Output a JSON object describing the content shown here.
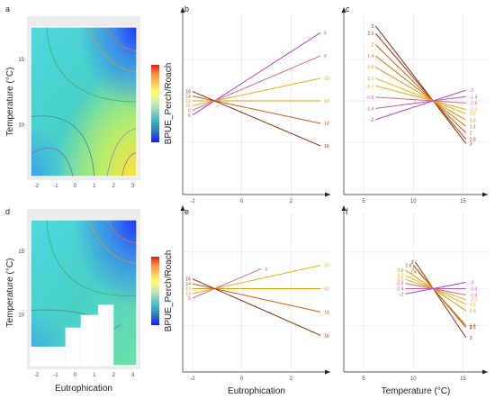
{
  "chart_data": {
    "colorbar": {
      "label": "BPUE_Perch/Roach",
      "colors": [
        "#e31a1c",
        "#fd8d3c",
        "#fecc5c",
        "#ffff66",
        "#c7e9b4",
        "#7fcdbb",
        "#41b6c4",
        "#2c7fb8",
        "#253494",
        "#1a1aff"
      ]
    },
    "heatmaps": [
      {
        "panel": "a",
        "xlabel": "",
        "ylabel": "Temperature (°C)",
        "xticks": [
          -2,
          -1,
          0,
          1,
          2,
          3
        ],
        "yticks": [
          10,
          15
        ],
        "xlim": [
          -2.3,
          3.2
        ],
        "ylim": [
          6,
          17.5
        ],
        "masked": []
      },
      {
        "panel": "d",
        "xlabel": "Eutrophication",
        "ylabel": "Temperature (°C)",
        "xticks": [
          -2,
          -1,
          0,
          1,
          2,
          3
        ],
        "yticks": [
          10,
          15
        ],
        "xlim": [
          -2.3,
          3.2
        ],
        "ylim": [
          6,
          17.5
        ],
        "masked": [
          [
            -2.3,
            -0.5,
            6,
            7.5
          ],
          [
            -0.5,
            0.3,
            6,
            9
          ],
          [
            0.3,
            1.2,
            6,
            10
          ],
          [
            1.2,
            2.0,
            6,
            10.8
          ]
        ]
      }
    ],
    "line_panels": [
      {
        "panel": "b",
        "type": "line",
        "xlabel": "",
        "xticks": [
          -2,
          0,
          2
        ],
        "xlim": [
          -2.4,
          3.6
        ],
        "ylim": [
          -1,
          1
        ],
        "pivot": [
          -1.1,
          0
        ],
        "x_start": -2,
        "x_end": 3.2,
        "left_labels": [
          "16",
          "14",
          "12",
          "10",
          "8",
          "6"
        ],
        "right_labels": [
          "6",
          "8",
          "10",
          "12",
          "14",
          "16"
        ],
        "series": [
          {
            "name": "6",
            "color": "#b040c8",
            "y_right": 0.91
          },
          {
            "name": "8",
            "color": "#d06a8a",
            "y_right": 0.6
          },
          {
            "name": "10",
            "color": "#e0b020",
            "y_right": 0.3
          },
          {
            "name": "12",
            "color": "#d89a18",
            "y_right": 0.0
          },
          {
            "name": "14",
            "color": "#c46014",
            "y_right": -0.3
          },
          {
            "name": "16",
            "color": "#8a2a10",
            "y_right": -0.6
          }
        ]
      },
      {
        "panel": "c",
        "type": "line",
        "xlabel": "",
        "xticks": [
          5,
          10,
          15
        ],
        "xlim": [
          3,
          17.5
        ],
        "ylim": [
          -1,
          1
        ],
        "pivot": [
          12,
          0
        ],
        "x_start": 6.2,
        "x_end": 15.3,
        "left_labels": [
          "3",
          "2.6",
          "2",
          "1.4",
          "0.8",
          "0.2",
          "-0.2",
          "-0.8",
          "-1.4",
          "-2"
        ],
        "right_labels": [
          "-2",
          "-1.4",
          "-0.8",
          "-0.2",
          "0.2",
          "0.8",
          "1.4",
          "2",
          "2.6",
          "3"
        ],
        "series": [
          {
            "name": "3",
            "color": "#8a2a10",
            "y_left": 1.0
          },
          {
            "name": "2.6",
            "color": "#a83c14",
            "y_left": 0.9
          },
          {
            "name": "2",
            "color": "#c46014",
            "y_left": 0.75
          },
          {
            "name": "1.4",
            "color": "#d27a16",
            "y_left": 0.6
          },
          {
            "name": "0.8",
            "color": "#d89a18",
            "y_left": 0.45
          },
          {
            "name": "0.2",
            "color": "#e0b020",
            "y_left": 0.3
          },
          {
            "name": "-0.2",
            "color": "#e0b020",
            "y_left": 0.2
          },
          {
            "name": "-0.8",
            "color": "#d06a8a",
            "y_left": 0.05
          },
          {
            "name": "-1.4",
            "color": "#c05aa8",
            "y_left": -0.1
          },
          {
            "name": "-2",
            "color": "#b040c8",
            "y_left": -0.25
          }
        ]
      },
      {
        "panel": "e",
        "type": "line",
        "xlabel": "Eutrophication",
        "xticks": [
          -2,
          0,
          2
        ],
        "xlim": [
          -2.4,
          3.6
        ],
        "ylim": [
          -1,
          1
        ],
        "pivot": [
          -1.1,
          0
        ],
        "x_start": -2,
        "x_end": 3.2,
        "left_labels": [
          "16",
          "14",
          "12",
          "10",
          "8"
        ],
        "right_labels": [
          "8",
          "10",
          "12",
          "14",
          "16"
        ],
        "series": [
          {
            "name": "8",
            "color": "#d06a8a",
            "x_end": 0.8,
            "y_right": 0.3
          },
          {
            "name": "10",
            "color": "#e0b020",
            "y_right": 0.35
          },
          {
            "name": "12",
            "color": "#d89a18",
            "y_right": 0.0
          },
          {
            "name": "14",
            "color": "#c46014",
            "y_right": -0.35
          },
          {
            "name": "16",
            "color": "#8a2a10",
            "y_right": -0.7
          }
        ]
      },
      {
        "panel": "f",
        "type": "line",
        "xlabel": "Temperature (°C)",
        "xticks": [
          5,
          10,
          15
        ],
        "xlim": [
          3,
          17.5
        ],
        "ylim": [
          -1,
          1
        ],
        "pivot": [
          12,
          0
        ],
        "x_start": 9.3,
        "x_end": 15.3,
        "left_labels": [
          "3",
          "2.6",
          "2",
          "1.4",
          "0.8",
          "0.2",
          "-0.2",
          "-0.8",
          "-1.4",
          "-2"
        ],
        "right_labels": [
          "-2",
          "-1.4",
          "-0.8",
          "-0.2",
          "0.2",
          "0.8",
          "1.4",
          "2",
          "2.6",
          "3"
        ],
        "series": [
          {
            "name": "3",
            "color": "#8a2a10",
            "y_left": 0.4,
            "x_left": 10.2
          },
          {
            "name": "2.6",
            "color": "#a83c14",
            "y_left": 0.35,
            "x_left": 10.0
          },
          {
            "name": "2",
            "color": "#c46014",
            "y_left": 0.3,
            "x_left": 10.3
          },
          {
            "name": "1.4",
            "color": "#d27a16",
            "y_left": 0.25,
            "x_left": 10.5
          },
          {
            "name": "0.8",
            "color": "#d89a18",
            "y_left": 0.28,
            "x_left": 9.2
          },
          {
            "name": "0.2",
            "color": "#e0b020",
            "y_left": 0.2,
            "x_left": 9.2
          },
          {
            "name": "-0.2",
            "color": "#e0b020",
            "y_left": 0.14,
            "x_left": 9.2
          },
          {
            "name": "-0.8",
            "color": "#d06a8a",
            "y_left": 0.08,
            "x_left": 9.2
          },
          {
            "name": "-1.4",
            "color": "#c05aa8",
            "y_left": 0.0,
            "x_left": 9.2
          },
          {
            "name": "-2",
            "color": "#b040c8",
            "y_left": -0.08,
            "x_left": 9.2
          }
        ]
      }
    ]
  }
}
